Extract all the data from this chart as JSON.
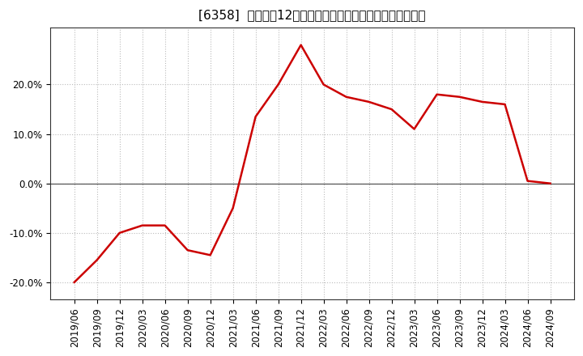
{
  "title": "[6358]  売上高の12か月移動合計の対前年同期増減率の推移",
  "x_labels": [
    "2019/06",
    "2019/09",
    "2019/12",
    "2020/03",
    "2020/06",
    "2020/09",
    "2020/12",
    "2021/03",
    "2021/06",
    "2021/09",
    "2021/12",
    "2022/03",
    "2022/06",
    "2022/09",
    "2022/12",
    "2023/03",
    "2023/06",
    "2023/09",
    "2023/12",
    "2024/03",
    "2024/06",
    "2024/09"
  ],
  "values": [
    -0.2,
    -0.155,
    -0.1,
    -0.085,
    -0.085,
    -0.135,
    -0.145,
    -0.05,
    0.135,
    0.2,
    0.28,
    0.2,
    0.175,
    0.165,
    0.15,
    0.11,
    0.18,
    0.175,
    0.165,
    0.16,
    0.005,
    0.0
  ],
  "line_color": "#cc0000",
  "line_width": 1.8,
  "bg_color": "#ffffff",
  "plot_bg_color": "#ffffff",
  "grid_color": "#bbbbbb",
  "ylim": [
    -0.235,
    0.315
  ],
  "yticks": [
    -0.2,
    -0.1,
    0.0,
    0.1,
    0.2
  ],
  "ytick_labels": [
    "-20.0%",
    "-10.0%",
    "0.0%",
    "10.0%",
    "20.0%"
  ],
  "zero_line_color": "#555555",
  "title_fontsize": 11,
  "tick_fontsize": 8.5,
  "grid_linestyle": ":",
  "grid_linewidth": 0.8
}
